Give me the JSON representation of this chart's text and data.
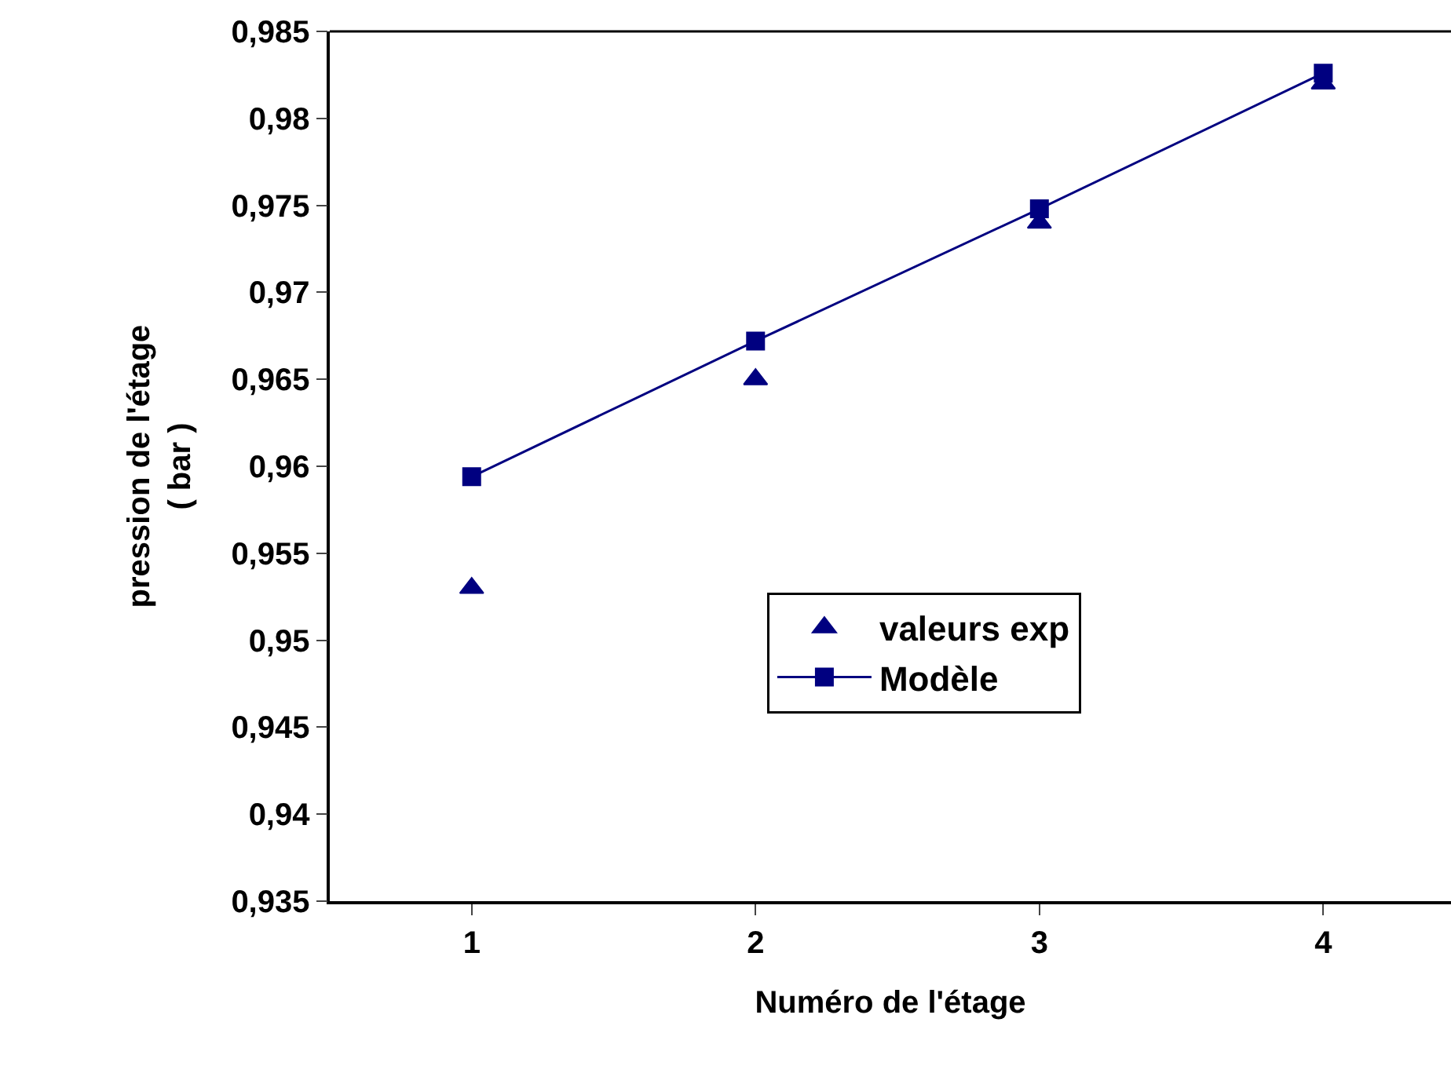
{
  "chart_data": {
    "type": "line",
    "xlabel": "Numéro de l'étage",
    "ylabel": "pression de l'étage\n( bar )",
    "x": [
      1,
      2,
      3,
      4
    ],
    "series": [
      {
        "name": "valeurs exp",
        "type": "scatter",
        "marker": "triangle",
        "color": "#000080",
        "values": [
          0.953,
          0.965,
          0.974,
          0.982
        ]
      },
      {
        "name": "Modèle",
        "marker": "square",
        "line_style": "solid",
        "color": "#000080",
        "values": [
          0.9594,
          0.9672,
          0.9748,
          0.9826
        ]
      }
    ],
    "xlim": [
      0.5,
      4.45
    ],
    "xticks": [
      1,
      2,
      3,
      4
    ],
    "ylim": [
      0.935,
      0.985
    ],
    "yticks": [
      {
        "value": 0.935,
        "label": "0,935"
      },
      {
        "value": 0.94,
        "label": "0,94"
      },
      {
        "value": 0.945,
        "label": "0,945"
      },
      {
        "value": 0.95,
        "label": "0,95"
      },
      {
        "value": 0.955,
        "label": "0,955"
      },
      {
        "value": 0.96,
        "label": "0,96"
      },
      {
        "value": 0.965,
        "label": "0,965"
      },
      {
        "value": 0.97,
        "label": "0,97"
      },
      {
        "value": 0.975,
        "label": "0,975"
      },
      {
        "value": 0.98,
        "label": "0,98"
      },
      {
        "value": 0.985,
        "label": "0,985"
      }
    ],
    "grid": false,
    "legend": "bottom right"
  }
}
